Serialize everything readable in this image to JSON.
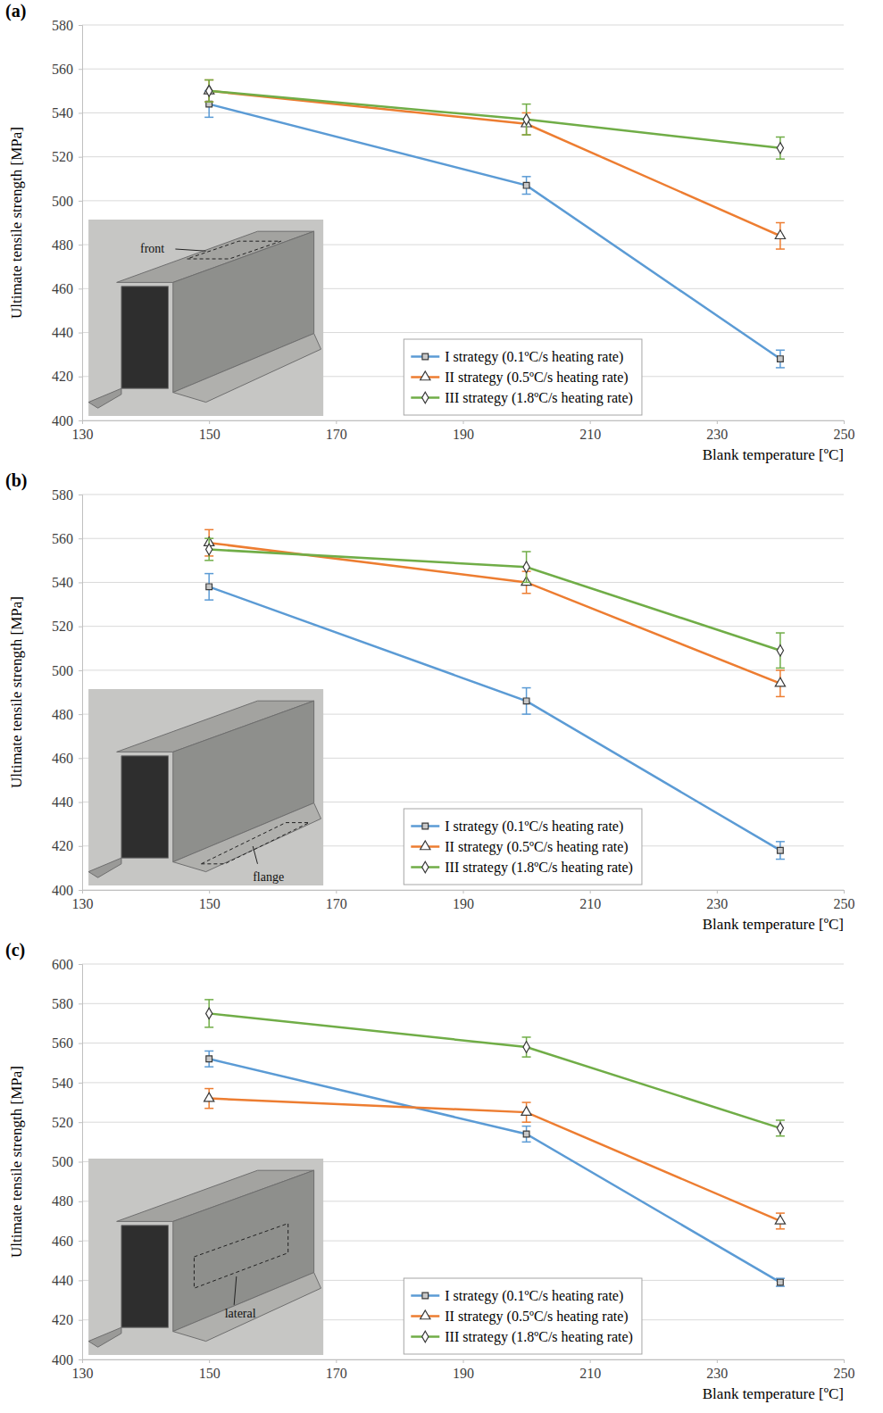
{
  "chart_data": [
    {
      "type": "line",
      "panel_label": "(a)",
      "x_label": "Blank temperature [ºC]",
      "y_label": "Ultimate tensile strength [MPa]",
      "x": [
        150,
        200,
        240
      ],
      "xlim": [
        130,
        250
      ],
      "xticks": [
        130,
        150,
        170,
        190,
        210,
        230,
        250
      ],
      "ylim": [
        400,
        580
      ],
      "yticks": [
        400,
        420,
        440,
        460,
        480,
        500,
        520,
        540,
        560,
        580
      ],
      "grid": true,
      "legend": "lower center",
      "annotations": [
        {
          "text": "front"
        }
      ],
      "series": [
        {
          "name": "I strategy (0.1ºC/s heating rate)",
          "color": "#5b9bd5",
          "marker": "square",
          "values": [
            544,
            507,
            428
          ],
          "errors": [
            6,
            4,
            4
          ]
        },
        {
          "name": "II strategy (0.5ºC/s heating rate)",
          "color": "#ed7d31",
          "marker": "triangle",
          "values": [
            550,
            535,
            484
          ],
          "errors": [
            5,
            5,
            6
          ]
        },
        {
          "name": "III strategy (1.8ºC/s heating rate)",
          "color": "#70ad47",
          "marker": "diamond",
          "values": [
            550,
            537,
            524
          ],
          "errors": [
            5,
            7,
            5
          ]
        }
      ]
    },
    {
      "type": "line",
      "panel_label": "(b)",
      "x_label": "Blank temperature [ºC]",
      "y_label": "Ultimate tensile strength [MPa]",
      "x": [
        150,
        200,
        240
      ],
      "xlim": [
        130,
        250
      ],
      "xticks": [
        130,
        150,
        170,
        190,
        210,
        230,
        250
      ],
      "ylim": [
        400,
        580
      ],
      "yticks": [
        400,
        420,
        440,
        460,
        480,
        500,
        520,
        540,
        560,
        580
      ],
      "grid": true,
      "legend": "lower center",
      "annotations": [
        {
          "text": "flange"
        }
      ],
      "series": [
        {
          "name": "I strategy (0.1ºC/s heating rate)",
          "color": "#5b9bd5",
          "marker": "square",
          "values": [
            538,
            486,
            418
          ],
          "errors": [
            6,
            6,
            4
          ]
        },
        {
          "name": "II strategy (0.5ºC/s heating rate)",
          "color": "#ed7d31",
          "marker": "triangle",
          "values": [
            558,
            540,
            494
          ],
          "errors": [
            6,
            5,
            6
          ]
        },
        {
          "name": "III strategy (1.8ºC/s heating rate)",
          "color": "#70ad47",
          "marker": "diamond",
          "values": [
            555,
            547,
            509
          ],
          "errors": [
            5,
            7,
            8
          ]
        }
      ]
    },
    {
      "type": "line",
      "panel_label": "(c)",
      "x_label": "Blank temperature [ºC]",
      "y_label": "Ultimate tensile strength [MPa]",
      "x": [
        150,
        200,
        240
      ],
      "xlim": [
        130,
        250
      ],
      "xticks": [
        130,
        150,
        170,
        190,
        210,
        230,
        250
      ],
      "ylim": [
        400,
        600
      ],
      "yticks": [
        400,
        420,
        440,
        460,
        480,
        500,
        520,
        540,
        560,
        580,
        600
      ],
      "grid": true,
      "legend": "lower center",
      "annotations": [
        {
          "text": "lateral"
        }
      ],
      "series": [
        {
          "name": "I strategy (0.1ºC/s heating rate)",
          "color": "#5b9bd5",
          "marker": "square",
          "values": [
            552,
            514,
            439
          ],
          "errors": [
            4,
            4,
            2
          ]
        },
        {
          "name": "II strategy (0.5ºC/s heating rate)",
          "color": "#ed7d31",
          "marker": "triangle",
          "values": [
            532,
            525,
            470
          ],
          "errors": [
            5,
            5,
            4
          ]
        },
        {
          "name": "III strategy (1.8ºC/s heating rate)",
          "color": "#70ad47",
          "marker": "diamond",
          "values": [
            575,
            558,
            517
          ],
          "errors": [
            7,
            5,
            4
          ]
        }
      ]
    }
  ]
}
